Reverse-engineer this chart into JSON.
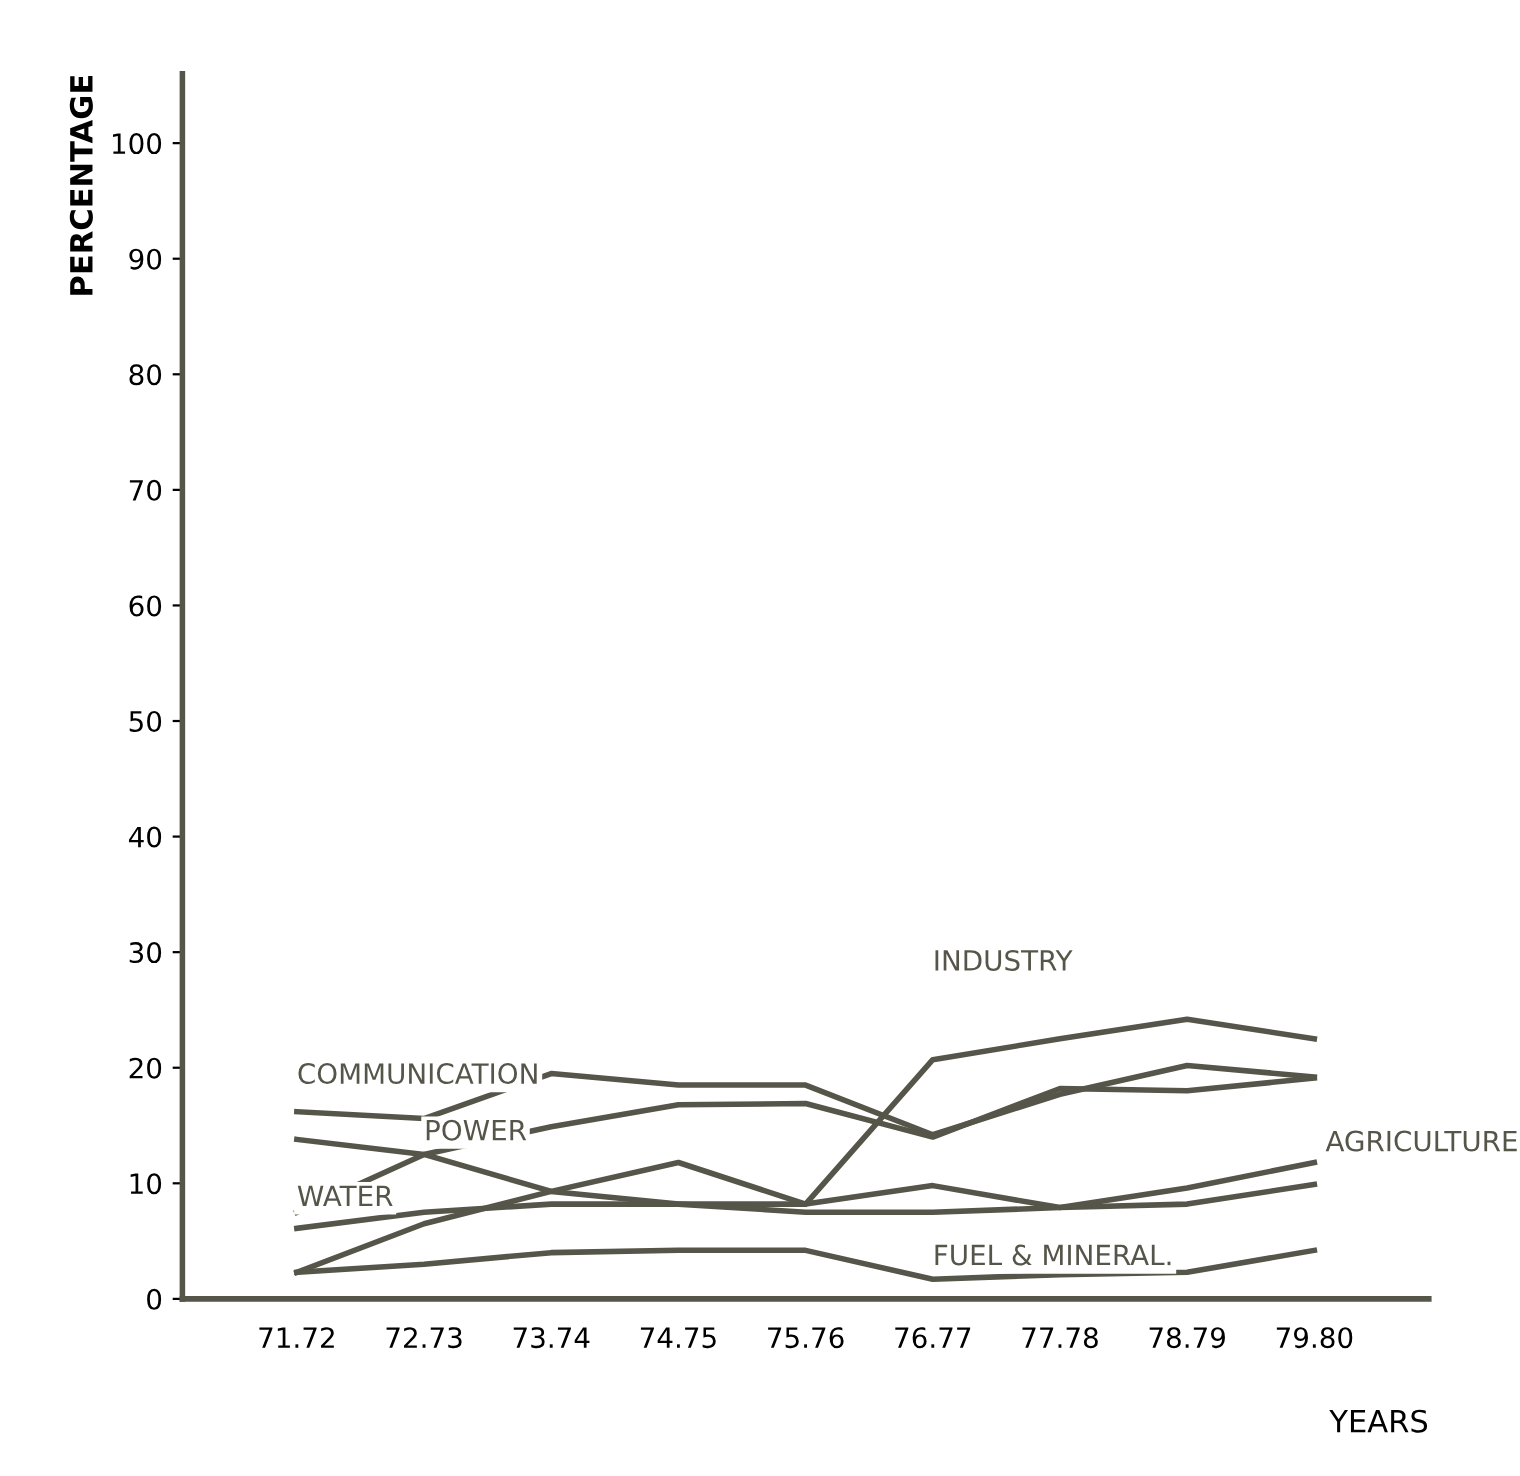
{
  "chart_data": {
    "type": "line",
    "xlabel": "YEARS",
    "ylabel": "PERCENTAGE",
    "categories": [
      "71.72",
      "72.73",
      "73.74",
      "74.75",
      "75.76",
      "76.77",
      "77.78",
      "78.79",
      "79.80"
    ],
    "ylim": [
      0,
      106
    ],
    "yticks": [
      0,
      10,
      20,
      30,
      40,
      50,
      60,
      70,
      80,
      90,
      100
    ],
    "grid": false,
    "legend": false,
    "marker": "none",
    "line_style": "solid",
    "series": [
      {
        "name": "COMMUNICATION",
        "color": "#55554a",
        "values": [
          16.2,
          15.6,
          19.5,
          18.5,
          18.5,
          14.2,
          17.7,
          20.2,
          19.2
        ]
      },
      {
        "name": "POWER",
        "color": "#55554a",
        "values": [
          7.5,
          12.5,
          14.9,
          16.8,
          16.9,
          14.0,
          18.2,
          18.0,
          19.1
        ]
      },
      {
        "name": "WATER",
        "color": "#55554a",
        "values": [
          6.1,
          7.5,
          8.2,
          8.2,
          8.2,
          9.8,
          7.9,
          8.2,
          9.9
        ]
      },
      {
        "name": "INDUSTRY",
        "color": "#55554a",
        "values": [
          2.3,
          6.5,
          9.3,
          11.8,
          8.2,
          20.7,
          22.5,
          24.2,
          22.5
        ]
      },
      {
        "name": "AGRICULTURE",
        "color": "#55554a",
        "values": [
          13.8,
          12.5,
          9.3,
          8.2,
          7.5,
          7.5,
          7.9,
          9.6,
          11.8
        ]
      },
      {
        "name": "FUEL & MINERAL.",
        "color": "#55554a",
        "values": [
          2.3,
          3.0,
          4.0,
          4.2,
          4.2,
          1.7,
          2.1,
          2.3,
          4.2
        ]
      }
    ]
  }
}
